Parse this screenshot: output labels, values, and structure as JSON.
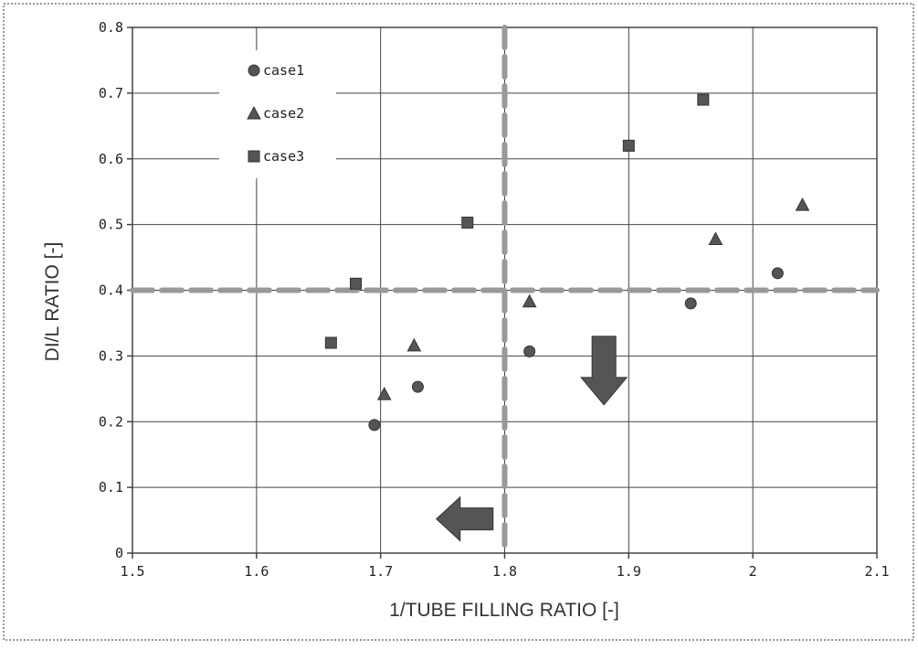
{
  "chart_data": {
    "type": "scatter",
    "title": "",
    "xlabel": "1/TUBE FILLING RATIO [-]",
    "ylabel": "DI/L RATIO [-]",
    "xlim": [
      1.5,
      2.1
    ],
    "ylim": [
      0,
      0.8
    ],
    "x_ticks": [
      "1.5",
      "1.6",
      "1.7",
      "1.8",
      "1.9",
      "2",
      "2.1"
    ],
    "y_ticks": [
      "0",
      "0.1",
      "0.2",
      "0.3",
      "0.4",
      "0.5",
      "0.6",
      "0.7",
      "0.8"
    ],
    "grid": true,
    "legend_position": "top-left",
    "series": [
      {
        "name": "case1",
        "marker": "circle",
        "points": [
          {
            "x": 1.695,
            "y": 0.195
          },
          {
            "x": 1.73,
            "y": 0.253
          },
          {
            "x": 1.82,
            "y": 0.307
          },
          {
            "x": 1.95,
            "y": 0.38
          },
          {
            "x": 2.02,
            "y": 0.426
          }
        ]
      },
      {
        "name": "case2",
        "marker": "triangle",
        "points": [
          {
            "x": 1.703,
            "y": 0.242
          },
          {
            "x": 1.727,
            "y": 0.316
          },
          {
            "x": 1.82,
            "y": 0.383
          },
          {
            "x": 1.97,
            "y": 0.478
          },
          {
            "x": 2.04,
            "y": 0.53
          }
        ]
      },
      {
        "name": "case3",
        "marker": "square",
        "points": [
          {
            "x": 1.66,
            "y": 0.32
          },
          {
            "x": 1.68,
            "y": 0.41
          },
          {
            "x": 1.77,
            "y": 0.503
          },
          {
            "x": 1.9,
            "y": 0.62
          },
          {
            "x": 1.96,
            "y": 0.69
          }
        ]
      }
    ],
    "threshold_lines": [
      {
        "orientation": "horizontal",
        "value": 0.4
      },
      {
        "orientation": "vertical",
        "value": 1.8
      }
    ],
    "arrows": [
      {
        "direction": "left",
        "x": 1.77,
        "y": 0.052
      },
      {
        "direction": "down",
        "x": 1.88,
        "y": 0.33
      }
    ],
    "colors": {
      "marker": "#555555",
      "grid": "#444444",
      "threshold": "#999999",
      "arrow": "#555555"
    }
  }
}
